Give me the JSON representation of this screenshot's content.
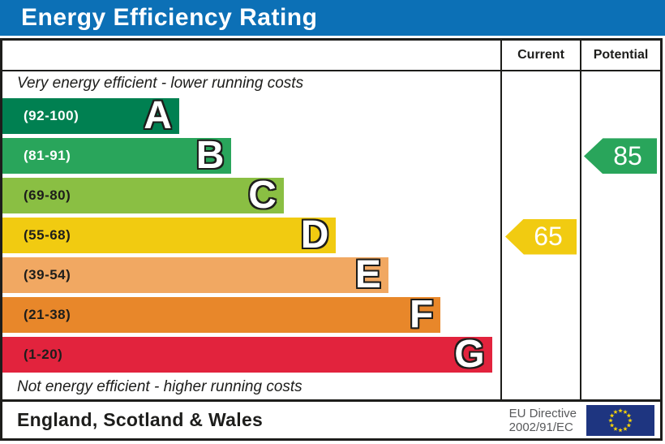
{
  "theme": {
    "header_bg": "#0c70b6",
    "border_color": "#1d1d1b"
  },
  "title": "Energy Efficiency Rating",
  "table": {
    "current_label": "Current",
    "potential_label": "Potential",
    "top_note": "Very energy efficient - lower running costs",
    "bottom_note": "Not energy efficient - higher running costs"
  },
  "bands": [
    {
      "letter": "A",
      "range": "(92-100)",
      "color": "#008051",
      "label_color": "#ffffff",
      "width_pct": "35.5%"
    },
    {
      "letter": "B",
      "range": "(81-91)",
      "color": "#29a55b",
      "label_color": "#ffffff",
      "width_pct": "46%"
    },
    {
      "letter": "C",
      "range": "(69-80)",
      "color": "#8abf43",
      "label_color": "#1d1d1b",
      "width_pct": "56.5%"
    },
    {
      "letter": "D",
      "range": "(55-68)",
      "color": "#f1cb11",
      "label_color": "#1d1d1b",
      "width_pct": "67%"
    },
    {
      "letter": "E",
      "range": "(39-54)",
      "color": "#f1a862",
      "label_color": "#1d1d1b",
      "width_pct": "77.5%"
    },
    {
      "letter": "F",
      "range": "(21-38)",
      "color": "#e8872a",
      "label_color": "#1d1d1b",
      "width_pct": "88%"
    },
    {
      "letter": "G",
      "range": "(1-20)",
      "color": "#e2233d",
      "label_color": "#1d1d1b",
      "width_pct": "98.3%"
    }
  ],
  "ratings": {
    "current": {
      "value": "65",
      "band_index": 3,
      "color": "#f1cb11"
    },
    "potential": {
      "value": "85",
      "band_index": 1,
      "color": "#29a55b"
    }
  },
  "footer": {
    "region": "England, Scotland & Wales",
    "directive_line1": "EU Directive",
    "directive_line2": "2002/91/EC",
    "flag_bg": "#1e3580",
    "flag_star_color": "#f8d408"
  },
  "chart_data": {
    "type": "bar",
    "title": "Energy Efficiency Rating",
    "categories": [
      "A (92-100)",
      "B (81-91)",
      "C (69-80)",
      "D (55-68)",
      "E (39-54)",
      "F (21-38)",
      "G (1-20)"
    ],
    "band_ranges": [
      [
        92,
        100
      ],
      [
        81,
        91
      ],
      [
        69,
        80
      ],
      [
        55,
        68
      ],
      [
        39,
        54
      ],
      [
        21,
        38
      ],
      [
        1,
        20
      ]
    ],
    "band_colors": [
      "#008051",
      "#29a55b",
      "#8abf43",
      "#f1cb11",
      "#f1a862",
      "#e8872a",
      "#e2233d"
    ],
    "current": {
      "value": 65,
      "band": "D"
    },
    "potential": {
      "value": 85,
      "band": "B"
    },
    "top_note": "Very energy efficient - lower running costs",
    "bottom_note": "Not energy efficient - higher running costs",
    "region": "England, Scotland & Wales",
    "directive": "EU Directive 2002/91/EC",
    "legend_position": "none",
    "grid": false
  }
}
